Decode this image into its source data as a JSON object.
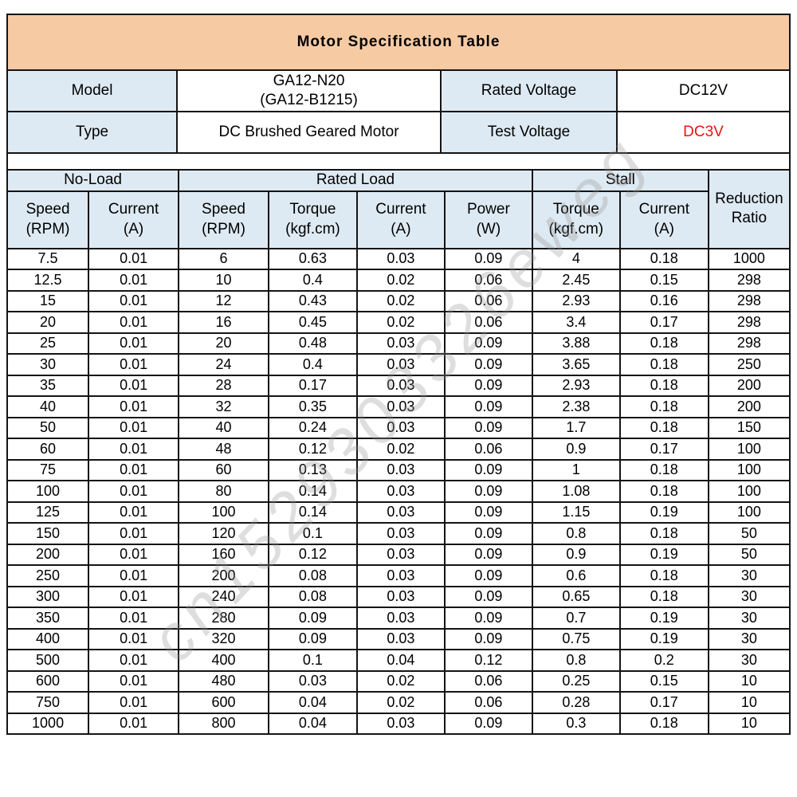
{
  "title": "Motor Specification Table",
  "info": {
    "model_label": "Model",
    "model_value": "GA12-N20\n(GA12-B1215)",
    "rated_voltage_label": "Rated Voltage",
    "rated_voltage_value": "DC12V",
    "type_label": "Type",
    "type_value": "DC Brushed Geared Motor",
    "test_voltage_label": "Test Voltage",
    "test_voltage_value": "DC3V"
  },
  "spec_table": {
    "groups": [
      {
        "label": "No-Load",
        "colspan": 2
      },
      {
        "label": "Rated Load",
        "colspan": 4
      },
      {
        "label": "Stall",
        "colspan": 2
      }
    ],
    "reduction_header": "Reduction\nRatio",
    "subcolumns": [
      "Speed\n(RPM)",
      "Current\n(A)",
      "Speed\n(RPM)",
      "Torque\n(kgf.cm)",
      "Current\n(A)",
      "Power\n(W)",
      "Torque\n(kgf.cm)",
      "Current\n(A)"
    ],
    "rows": [
      [
        "7.5",
        "0.01",
        "6",
        "0.63",
        "0.03",
        "0.09",
        "4",
        "0.18",
        "1000"
      ],
      [
        "12.5",
        "0.01",
        "10",
        "0.4",
        "0.02",
        "0.06",
        "2.45",
        "0.15",
        "298"
      ],
      [
        "15",
        "0.01",
        "12",
        "0.43",
        "0.02",
        "0.06",
        "2.93",
        "0.16",
        "298"
      ],
      [
        "20",
        "0.01",
        "16",
        "0.45",
        "0.02",
        "0.06",
        "3.4",
        "0.17",
        "298"
      ],
      [
        "25",
        "0.01",
        "20",
        "0.48",
        "0.03",
        "0.09",
        "3.88",
        "0.18",
        "298"
      ],
      [
        "30",
        "0.01",
        "24",
        "0.4",
        "0.03",
        "0.09",
        "3.65",
        "0.18",
        "250"
      ],
      [
        "35",
        "0.01",
        "28",
        "0.17",
        "0.03",
        "0.09",
        "2.93",
        "0.18",
        "200"
      ],
      [
        "40",
        "0.01",
        "32",
        "0.35",
        "0.03",
        "0.09",
        "2.38",
        "0.18",
        "200"
      ],
      [
        "50",
        "0.01",
        "40",
        "0.24",
        "0.03",
        "0.09",
        "1.7",
        "0.18",
        "150"
      ],
      [
        "60",
        "0.01",
        "48",
        "0.12",
        "0.02",
        "0.06",
        "0.9",
        "0.17",
        "100"
      ],
      [
        "75",
        "0.01",
        "60",
        "0.13",
        "0.03",
        "0.09",
        "1",
        "0.18",
        "100"
      ],
      [
        "100",
        "0.01",
        "80",
        "0.14",
        "0.03",
        "0.09",
        "1.08",
        "0.18",
        "100"
      ],
      [
        "125",
        "0.01",
        "100",
        "0.14",
        "0.03",
        "0.09",
        "1.15",
        "0.19",
        "100"
      ],
      [
        "150",
        "0.01",
        "120",
        "0.1",
        "0.03",
        "0.09",
        "0.8",
        "0.18",
        "50"
      ],
      [
        "200",
        "0.01",
        "160",
        "0.12",
        "0.03",
        "0.09",
        "0.9",
        "0.19",
        "50"
      ],
      [
        "250",
        "0.01",
        "200",
        "0.08",
        "0.03",
        "0.09",
        "0.6",
        "0.18",
        "30"
      ],
      [
        "300",
        "0.01",
        "240",
        "0.08",
        "0.03",
        "0.09",
        "0.65",
        "0.18",
        "30"
      ],
      [
        "350",
        "0.01",
        "280",
        "0.09",
        "0.03",
        "0.09",
        "0.7",
        "0.19",
        "30"
      ],
      [
        "400",
        "0.01",
        "320",
        "0.09",
        "0.03",
        "0.09",
        "0.75",
        "0.19",
        "30"
      ],
      [
        "500",
        "0.01",
        "400",
        "0.1",
        "0.04",
        "0.12",
        "0.8",
        "0.2",
        "30"
      ],
      [
        "600",
        "0.01",
        "480",
        "0.03",
        "0.02",
        "0.06",
        "0.25",
        "0.15",
        "10"
      ],
      [
        "750",
        "0.01",
        "600",
        "0.04",
        "0.02",
        "0.06",
        "0.28",
        "0.17",
        "10"
      ],
      [
        "1000",
        "0.01",
        "800",
        "0.04",
        "0.03",
        "0.09",
        "0.3",
        "0.18",
        "10"
      ]
    ]
  },
  "watermark": "cn1529303326eweg",
  "colors": {
    "title_bg": "#F6CAA3",
    "header_bg": "#DEEAF3",
    "test_voltage_text": "#EE1111",
    "border": "#141414",
    "watermark_text": "#919191"
  }
}
